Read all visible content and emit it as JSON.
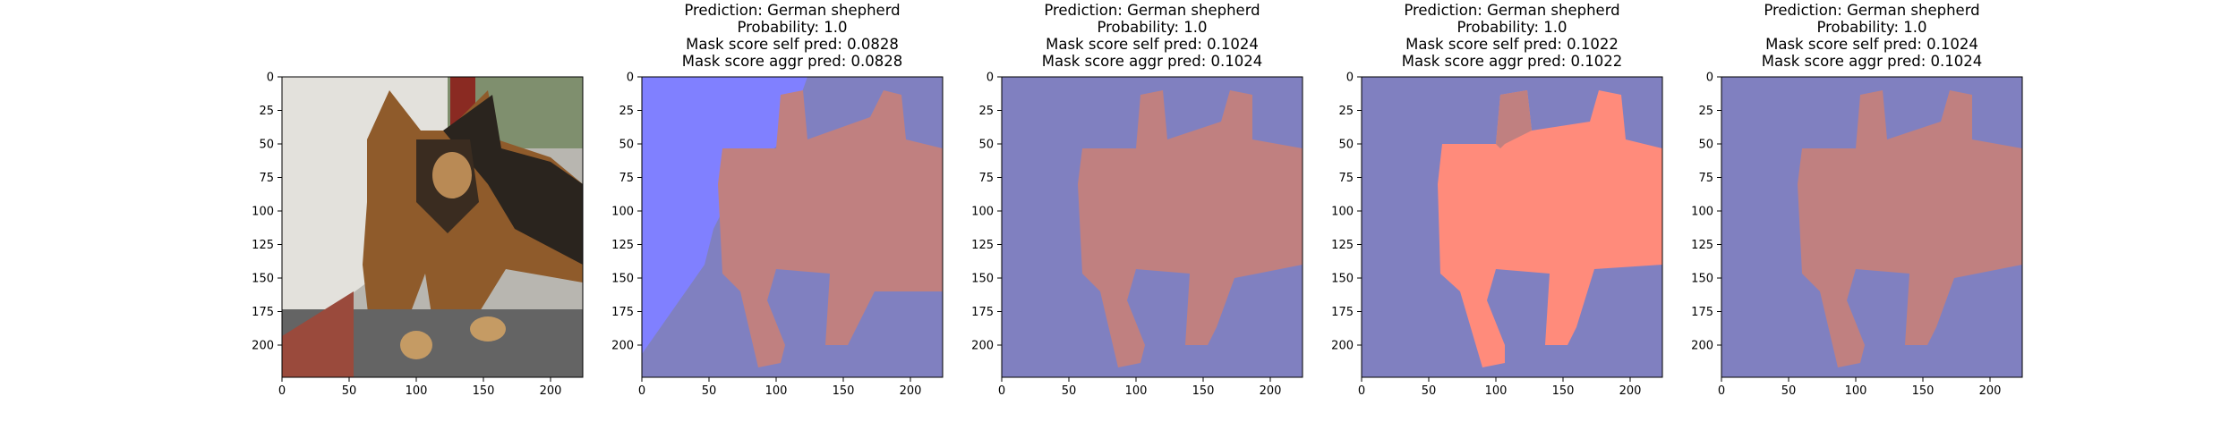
{
  "panels": [
    {
      "id": "input-image",
      "title": [],
      "image_kind": "photo",
      "x_ticks": [
        "0",
        "50",
        "100",
        "150",
        "200"
      ],
      "y_ticks": [
        "0",
        "25",
        "50",
        "75",
        "100",
        "125",
        "150",
        "175",
        "200"
      ]
    },
    {
      "id": "mask-1",
      "title": [
        "Prediction: German shepherd",
        "Probability: 1.0",
        "Mask score self pred: 0.0828",
        "Mask score aggr pred: 0.0828"
      ],
      "image_kind": "mask",
      "x_ticks": [
        "0",
        "50",
        "100",
        "150",
        "200"
      ],
      "y_ticks": [
        "0",
        "25",
        "50",
        "75",
        "100",
        "125",
        "150",
        "175",
        "200"
      ]
    },
    {
      "id": "mask-2",
      "title": [
        "Prediction: German shepherd",
        "Probability: 1.0",
        "Mask score self pred: 0.1024",
        "Mask score aggr pred: 0.1024"
      ],
      "image_kind": "mask",
      "x_ticks": [
        "0",
        "50",
        "100",
        "150",
        "200"
      ],
      "y_ticks": [
        "0",
        "25",
        "50",
        "75",
        "100",
        "125",
        "150",
        "175",
        "200"
      ]
    },
    {
      "id": "mask-3",
      "title": [
        "Prediction: German shepherd",
        "Probability: 1.0",
        "Mask score self pred: 0.1022",
        "Mask score aggr pred: 0.1022"
      ],
      "image_kind": "mask",
      "x_ticks": [
        "0",
        "50",
        "100",
        "150",
        "200"
      ],
      "y_ticks": [
        "0",
        "25",
        "50",
        "75",
        "100",
        "125",
        "150",
        "175",
        "200"
      ]
    },
    {
      "id": "mask-4",
      "title": [
        "Prediction: German shepherd",
        "Probability: 1.0",
        "Mask score self pred: 0.1024",
        "Mask score aggr pred: 0.1024"
      ],
      "image_kind": "mask",
      "x_ticks": [
        "0",
        "50",
        "100",
        "150",
        "200"
      ],
      "y_ticks": [
        "0",
        "25",
        "50",
        "75",
        "100",
        "125",
        "150",
        "175",
        "200"
      ]
    }
  ],
  "colors": {
    "background_mask": "#8080c0",
    "dog_mask": "#c08080",
    "light_blue_region": "#8080ff",
    "bright_red_region": "#ff8b7b"
  }
}
